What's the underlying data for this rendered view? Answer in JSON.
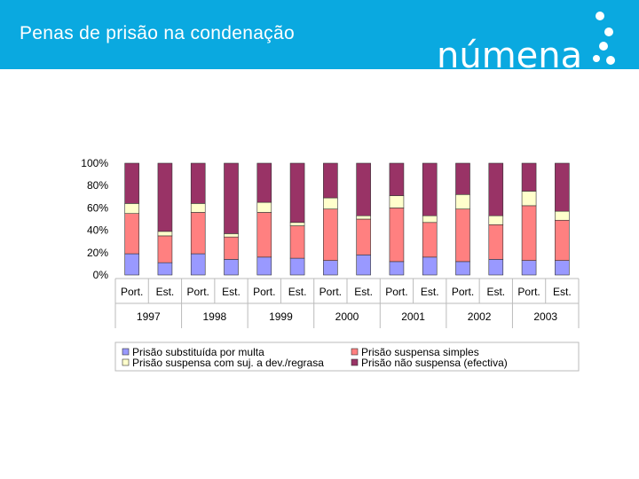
{
  "header": {
    "title": "Penas de prisão na condenação",
    "logo_text": "númena"
  },
  "colors": {
    "banner": "#0aa9e0",
    "logo_dots": "#ffffff"
  },
  "chart_data": {
    "type": "stacked-bar-100",
    "y_ticks": [
      "100%",
      "80%",
      "60%",
      "40%",
      "20%",
      "0%"
    ],
    "ylim": [
      0,
      100
    ],
    "groups": [
      {
        "year": "1997",
        "bars": [
          "Port.",
          "Est."
        ]
      },
      {
        "year": "1998",
        "bars": [
          "Port.",
          "Est."
        ]
      },
      {
        "year": "1999",
        "bars": [
          "Port.",
          "Est."
        ]
      },
      {
        "year": "2000",
        "bars": [
          "Port.",
          "Est."
        ]
      },
      {
        "year": "2001",
        "bars": [
          "Port.",
          "Est."
        ]
      },
      {
        "year": "2002",
        "bars": [
          "Port.",
          "Est."
        ]
      },
      {
        "year": "2003",
        "bars": [
          "Port.",
          "Est."
        ]
      }
    ],
    "series": [
      {
        "name": "Prisão substituída por multa",
        "color": "#9999ff",
        "values": [
          19,
          11,
          19,
          14,
          16,
          15,
          13,
          18,
          12,
          16,
          12,
          14,
          13,
          13
        ]
      },
      {
        "name": "Prisão suspensa simples",
        "color": "#ff8080",
        "values": [
          36,
          24,
          37,
          20,
          40,
          29,
          46,
          32,
          48,
          31,
          47,
          31,
          49,
          36
        ]
      },
      {
        "name": "Prisão suspensa com suj. a dev./regrasa",
        "color": "#ffffcc",
        "values": [
          9,
          4,
          8,
          3,
          9,
          3,
          10,
          3,
          11,
          6,
          13,
          8,
          13,
          8
        ]
      },
      {
        "name": "Prisão não suspensa (efectiva)",
        "color": "#993366",
        "values": [
          36,
          61,
          36,
          63,
          35,
          53,
          31,
          47,
          29,
          47,
          28,
          47,
          25,
          43
        ]
      }
    ],
    "legend_position": "bottom"
  }
}
